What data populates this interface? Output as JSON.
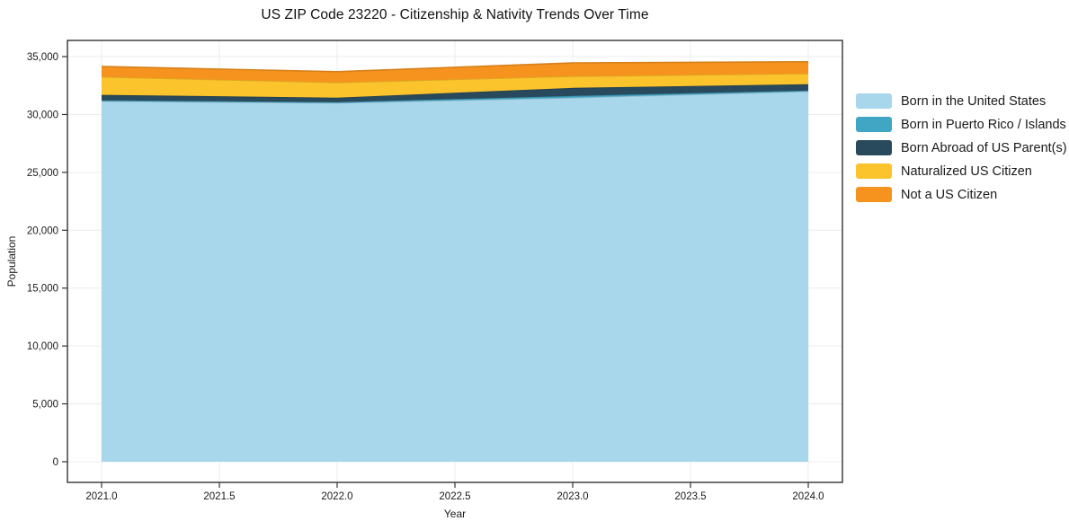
{
  "title": "US ZIP Code 23220 - Citizenship & Nativity Trends Over Time",
  "xlabel": "Year",
  "ylabel": "Population",
  "chart_data": {
    "type": "area",
    "stacked": true,
    "title": "US ZIP Code 23220 - Citizenship & Nativity Trends Over Time",
    "xlabel": "Year",
    "ylabel": "Population",
    "x": [
      2021,
      2022,
      2023,
      2024
    ],
    "series": [
      {
        "name": "Born in the United States",
        "color": "#A8D6EA",
        "values": [
          31150,
          31000,
          31450,
          32000
        ]
      },
      {
        "name": "Born in Puerto Rico / Islands",
        "color": "#41A6C4",
        "values": [
          70,
          70,
          150,
          70
        ]
      },
      {
        "name": "Born Abroad of US Parent(s)",
        "color": "#29495C",
        "values": [
          480,
          390,
          700,
          550
        ]
      },
      {
        "name": "Naturalized US Citizen",
        "color": "#FBC32C",
        "values": [
          1550,
          1310,
          1000,
          920
        ]
      },
      {
        "name": "Not a US Citizen",
        "color": "#F6931E",
        "values": [
          900,
          930,
          1160,
          1010
        ]
      }
    ],
    "xticks": [
      "2021.0",
      "2021.5",
      "2022.0",
      "2022.5",
      "2023.0",
      "2023.5",
      "2024.0"
    ],
    "yticks": [
      "0",
      "5,000",
      "10,000",
      "15,000",
      "20,000",
      "25,000",
      "30,000",
      "35,000"
    ],
    "xlim": [
      2020.855,
      2024.145
    ],
    "ylim": [
      -1785,
      36400
    ],
    "grid": true,
    "grid_color": "#ECECEC",
    "spine_color": "#333333",
    "tick_label_color": "#1a1a1a",
    "legend_position": "right-outside"
  }
}
